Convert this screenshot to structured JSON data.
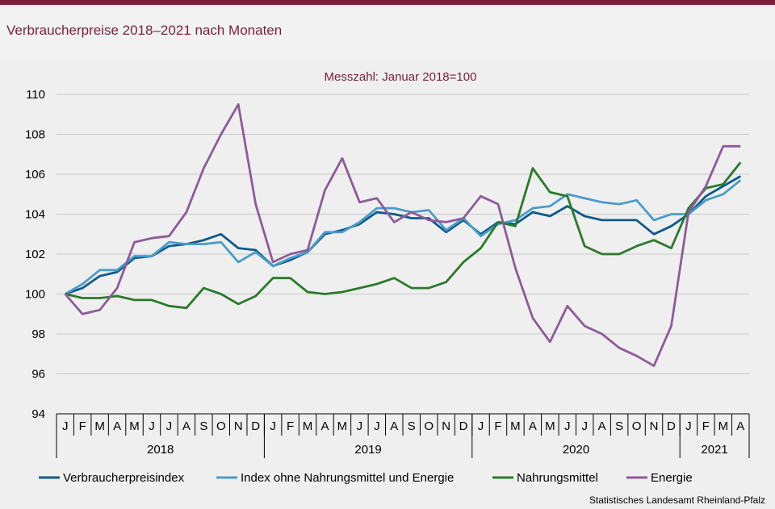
{
  "header": {
    "title": "Verbraucherpreise 2018–2021 nach Monaten"
  },
  "source": "Statistisches Landesamt Rheinland-Pfalz",
  "chart_data": {
    "type": "line",
    "subtitle": "Messzahl:  Januar  2018=100",
    "ylim": [
      94,
      110
    ],
    "yticks": [
      94,
      96,
      98,
      100,
      102,
      104,
      106,
      108,
      110
    ],
    "grid": true,
    "legend_position": "bottom",
    "months": [
      "J",
      "F",
      "M",
      "A",
      "M",
      "J",
      "J",
      "A",
      "S",
      "O",
      "N",
      "D",
      "J",
      "F",
      "M",
      "A",
      "M",
      "J",
      "J",
      "A",
      "S",
      "O",
      "N",
      "D",
      "J",
      "F",
      "M",
      "A",
      "M",
      "J",
      "J",
      "A",
      "S",
      "O",
      "N",
      "D",
      "J",
      "F",
      "M",
      "A"
    ],
    "years": [
      {
        "label": "2018",
        "months": 12
      },
      {
        "label": "2019",
        "months": 12
      },
      {
        "label": "2020",
        "months": 12
      },
      {
        "label": "2021",
        "months": 4
      }
    ],
    "series": [
      {
        "name": "Verbraucherpreisindex",
        "color": "#0e5a8a",
        "values": [
          100,
          100.3,
          100.9,
          101.1,
          101.8,
          101.9,
          102.4,
          102.5,
          102.7,
          103.0,
          102.3,
          102.2,
          101.4,
          101.7,
          102.1,
          103.0,
          103.2,
          103.5,
          104.1,
          104.0,
          103.8,
          103.8,
          103.1,
          103.7,
          103.0,
          103.6,
          103.5,
          104.1,
          103.9,
          104.4,
          103.9,
          103.7,
          103.7,
          103.7,
          103.0,
          103.4,
          104.0,
          104.9,
          105.4,
          105.9
        ]
      },
      {
        "name": "Index ohne Nahrungsmittel und Energie",
        "color": "#4b9cc9",
        "values": [
          100,
          100.5,
          101.2,
          101.2,
          101.9,
          101.9,
          102.6,
          102.5,
          102.5,
          102.6,
          101.6,
          102.1,
          101.4,
          101.8,
          102.1,
          103.1,
          103.1,
          103.6,
          104.3,
          104.3,
          104.1,
          104.2,
          103.2,
          103.8,
          102.9,
          103.5,
          103.7,
          104.3,
          104.4,
          105.0,
          104.8,
          104.6,
          104.5,
          104.7,
          103.7,
          104.0,
          104.0,
          104.7,
          105.0,
          105.7
        ]
      },
      {
        "name": "Nahrungsmittel",
        "color": "#2a7a2a",
        "values": [
          100,
          99.8,
          99.8,
          99.9,
          99.7,
          99.7,
          99.4,
          99.3,
          100.3,
          100.0,
          99.5,
          99.9,
          100.8,
          100.8,
          100.1,
          100.0,
          100.1,
          100.3,
          100.5,
          100.8,
          100.3,
          100.3,
          100.6,
          101.6,
          102.3,
          103.6,
          103.4,
          106.3,
          105.1,
          104.9,
          102.4,
          102.0,
          102.0,
          102.4,
          102.7,
          102.3,
          104.3,
          105.3,
          105.5,
          106.6
        ]
      },
      {
        "name": "Energie",
        "color": "#8e5b9a",
        "values": [
          100,
          99.0,
          99.2,
          100.3,
          102.6,
          102.8,
          102.9,
          104.1,
          106.3,
          108.0,
          109.5,
          104.5,
          101.6,
          102.0,
          102.2,
          105.2,
          106.8,
          104.6,
          104.8,
          103.6,
          104.1,
          103.7,
          103.6,
          103.8,
          104.9,
          104.5,
          101.3,
          98.8,
          97.6,
          99.4,
          98.4,
          98.0,
          97.3,
          96.9,
          96.4,
          98.4,
          104.1,
          105.4,
          107.4,
          107.4
        ]
      }
    ]
  }
}
